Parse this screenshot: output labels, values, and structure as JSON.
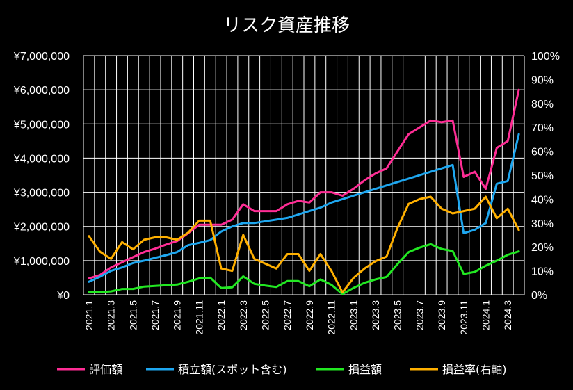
{
  "chart_data": {
    "type": "line",
    "title": "リスク資産推移",
    "x": [
      "2021.1",
      "2021.2",
      "2021.3",
      "2021.4",
      "2021.5",
      "2021.6",
      "2021.7",
      "2021.8",
      "2021.9",
      "2021.10",
      "2021.11",
      "2021.12",
      "2022.1",
      "2022.2",
      "2022.3",
      "2022.4",
      "2022.5",
      "2022.6",
      "2022.7",
      "2022.8",
      "2022.9",
      "2022.10",
      "2022.11",
      "2022.12",
      "2023.1",
      "2023.2",
      "2023.3",
      "2023.4",
      "2023.5",
      "2023.6",
      "2023.7",
      "2023.8",
      "2023.9",
      "2023.10",
      "2023.11",
      "2023.12",
      "2024.1",
      "2024.2",
      "2024.3",
      "2024.4"
    ],
    "x_tick_labels": [
      "2021.1",
      "2021.3",
      "2021.5",
      "2021.7",
      "2021.9",
      "2021.11",
      "2022.1",
      "2022.3",
      "2022.5",
      "2022.7",
      "2022.9",
      "2022.11",
      "2023.1",
      "2023.3",
      "2023.5",
      "2023.7",
      "2023.9",
      "2023.11",
      "2024.1",
      "2024.3"
    ],
    "y_left": {
      "ylim": [
        0,
        7000000
      ],
      "tick_labels": [
        "¥0",
        "¥1,000,000",
        "¥2,000,000",
        "¥3,000,000",
        "¥4,000,000",
        "¥5,000,000",
        "¥6,000,000",
        "¥7,000,000"
      ]
    },
    "y_right": {
      "ylim": [
        0,
        1.0
      ],
      "tick_labels": [
        "0%",
        "10%",
        "20%",
        "30%",
        "40%",
        "50%",
        "60%",
        "70%",
        "80%",
        "90%",
        "100%"
      ]
    },
    "grid": true,
    "legend_position": "bottom",
    "series": [
      {
        "name": "評価額",
        "axis": "left",
        "color": "#ff2d95",
        "values": [
          480000,
          580000,
          800000,
          950000,
          1100000,
          1250000,
          1350000,
          1470000,
          1570000,
          1800000,
          2050000,
          2050000,
          2050000,
          2200000,
          2650000,
          2450000,
          2450000,
          2450000,
          2650000,
          2750000,
          2700000,
          3000000,
          3000000,
          2900000,
          3100000,
          3350000,
          3550000,
          3700000,
          4200000,
          4700000,
          4900000,
          5100000,
          5050000,
          5100000,
          3450000,
          3600000,
          3100000,
          4300000,
          4500000,
          6000000
        ]
      },
      {
        "name": "積立額(スポット含む)",
        "axis": "left",
        "color": "#1ea7f0",
        "values": [
          380000,
          530000,
          700000,
          800000,
          930000,
          1000000,
          1080000,
          1160000,
          1250000,
          1450000,
          1520000,
          1600000,
          1850000,
          2000000,
          2100000,
          2100000,
          2150000,
          2200000,
          2250000,
          2350000,
          2450000,
          2550000,
          2700000,
          2800000,
          2900000,
          3000000,
          3100000,
          3200000,
          3300000,
          3400000,
          3500000,
          3600000,
          3700000,
          3800000,
          1800000,
          1900000,
          2100000,
          3250000,
          3330000,
          4700000
        ]
      },
      {
        "name": "損益額",
        "axis": "left",
        "color": "#22e822",
        "values": [
          80000,
          80000,
          100000,
          170000,
          170000,
          240000,
          260000,
          280000,
          300000,
          380000,
          480000,
          500000,
          200000,
          220000,
          540000,
          320000,
          270000,
          230000,
          400000,
          400000,
          250000,
          450000,
          290000,
          20000,
          200000,
          350000,
          450000,
          520000,
          900000,
          1250000,
          1380000,
          1480000,
          1340000,
          1280000,
          610000,
          670000,
          850000,
          1000000,
          1170000,
          1270000
        ]
      },
      {
        "name": "損益率(右軸)",
        "axis": "right",
        "color": "#ffb000",
        "values": [
          0.245,
          0.18,
          0.15,
          0.22,
          0.19,
          0.23,
          0.24,
          0.24,
          0.23,
          0.26,
          0.31,
          0.31,
          0.11,
          0.1,
          0.25,
          0.15,
          0.13,
          0.11,
          0.17,
          0.17,
          0.1,
          0.17,
          0.1,
          0.01,
          0.07,
          0.11,
          0.14,
          0.16,
          0.28,
          0.38,
          0.4,
          0.41,
          0.36,
          0.34,
          0.35,
          0.36,
          0.41,
          0.32,
          0.36,
          0.27
        ]
      }
    ]
  }
}
